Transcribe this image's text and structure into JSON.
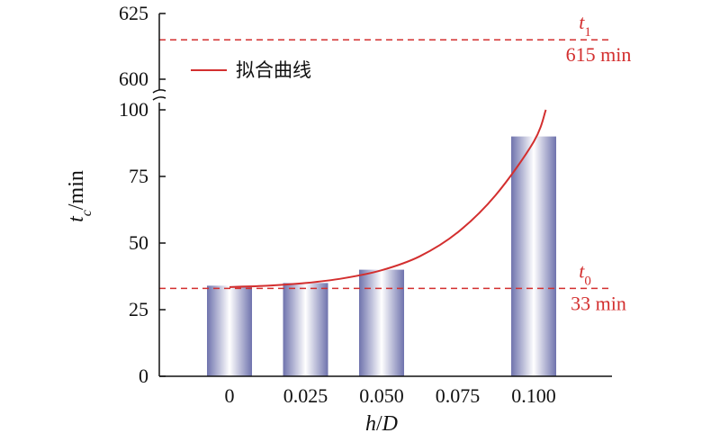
{
  "chart_data": {
    "type": "bar",
    "categories": [
      "0",
      "0.025",
      "0.050",
      "0.075",
      "0.100"
    ],
    "values": [
      34,
      35,
      40,
      null,
      90
    ],
    "xlabel": {
      "var1": "h",
      "sep": "/",
      "var2": "D"
    },
    "ylabel": {
      "var": "t",
      "sub": "c",
      "unit": "/min"
    },
    "yticks_lower": [
      "0",
      "25",
      "50",
      "75",
      "100"
    ],
    "yticks_upper": [
      "600",
      "625"
    ],
    "ylim_lower": [
      0,
      100
    ],
    "ylim_upper": [
      600,
      625
    ],
    "y_axis_break": true,
    "reference_lines": [
      {
        "var": "t",
        "sub": "1",
        "text": "615 min",
        "y": 615
      },
      {
        "var": "t",
        "sub": "0",
        "text": "33 min",
        "y": 33
      }
    ],
    "fit_curve": {
      "legend": "拟合曲线",
      "x": [
        0,
        0.0125,
        0.025,
        0.0375,
        0.05,
        0.0625,
        0.075,
        0.0875,
        0.1,
        0.104
      ],
      "y": [
        33.5,
        34,
        35,
        36.8,
        39.8,
        45,
        54,
        68,
        88,
        100
      ]
    },
    "colors": {
      "bar_edge": "#6f73ad",
      "bar_center": "#ffffff",
      "fit_line": "#d32f2f",
      "ref_line": "#d32f2f",
      "axis": "#111111"
    },
    "legend_position": "top-left",
    "grid": false
  }
}
